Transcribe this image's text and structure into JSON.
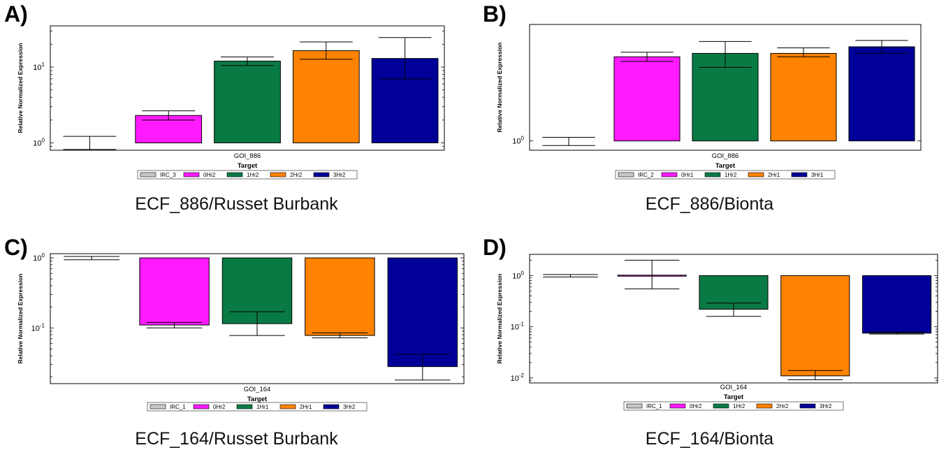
{
  "colors": {
    "IRC": "#c8c8c8",
    "0Hr": "#ff1aff",
    "1Hr": "#0a7a45",
    "2Hr": "#ff8200",
    "3Hr": "#000099"
  },
  "chart_data": [
    {
      "type": "bar",
      "panel_label": "A)",
      "caption": "ECF_886/Russet Burbank",
      "xlabel": "Target",
      "ylabel": "Relative Normalized Expression",
      "category": "GOI_886",
      "yscale": "log",
      "ylim": [
        0.8,
        35
      ],
      "yticks": [
        {
          "v": 1,
          "label": "10",
          "exp": "0"
        },
        {
          "v": 10,
          "label": "10",
          "exp": "1"
        }
      ],
      "series": [
        {
          "name": "IRC_3",
          "value": 1.0,
          "err_low": 0.82,
          "err_high": 1.22,
          "color_key": "IRC"
        },
        {
          "name": "0Hr2",
          "value": 2.3,
          "err_low": 2.0,
          "err_high": 2.65,
          "color_key": "0Hr"
        },
        {
          "name": "1Hr2",
          "value": 12,
          "err_low": 10.5,
          "err_high": 13.6,
          "color_key": "1Hr"
        },
        {
          "name": "2Hr2",
          "value": 16.5,
          "err_low": 12.7,
          "err_high": 21.5,
          "color_key": "2Hr"
        },
        {
          "name": "3Hr2",
          "value": 13,
          "err_low": 7.0,
          "err_high": 24.5,
          "color_key": "3Hr"
        }
      ]
    },
    {
      "type": "bar",
      "panel_label": "B)",
      "caption": "ECF_886/Bionta",
      "xlabel": "Target",
      "ylabel": "Relative Normalized Expression",
      "category": "GOI_886",
      "yscale": "log",
      "ylim": [
        0.95,
        1.9
      ],
      "yticks": [
        {
          "v": 1,
          "label": "10",
          "exp": "0"
        }
      ],
      "series": [
        {
          "name": "IRC_2",
          "value": 1.0,
          "err_low": 0.975,
          "err_high": 1.02,
          "color_key": "IRC"
        },
        {
          "name": "0Hr1",
          "value": 1.59,
          "err_low": 1.55,
          "err_high": 1.63,
          "color_key": "0Hr"
        },
        {
          "name": "1Hr2",
          "value": 1.62,
          "err_low": 1.5,
          "err_high": 1.73,
          "color_key": "1Hr"
        },
        {
          "name": "2Hr1",
          "value": 1.62,
          "err_low": 1.59,
          "err_high": 1.67,
          "color_key": "2Hr"
        },
        {
          "name": "3Hr1",
          "value": 1.68,
          "err_low": 1.62,
          "err_high": 1.74,
          "color_key": "3Hr"
        }
      ]
    },
    {
      "type": "bar",
      "panel_label": "C)",
      "caption": "ECF_164/Russet Burbank",
      "xlabel": "Target",
      "ylabel": "Relative Normalized Expression",
      "category": "GOI_164",
      "yscale": "log",
      "ylim": [
        0.016,
        1.15
      ],
      "yticks": [
        {
          "v": 1,
          "label": "10",
          "exp": "0"
        },
        {
          "v": 0.1,
          "label": "10",
          "exp": "-1"
        }
      ],
      "series": [
        {
          "name": "IRC_1",
          "value": 1.0,
          "err_low": 0.94,
          "err_high": 1.05,
          "color_key": "IRC"
        },
        {
          "name": "0Hr2",
          "value": 0.11,
          "err_low": 0.1,
          "err_high": 0.12,
          "color_key": "0Hr"
        },
        {
          "name": "1Hr1",
          "value": 0.115,
          "err_low": 0.078,
          "err_high": 0.17,
          "color_key": "1Hr"
        },
        {
          "name": "2Hr1",
          "value": 0.078,
          "err_low": 0.072,
          "err_high": 0.085,
          "color_key": "2Hr"
        },
        {
          "name": "3Hr2",
          "value": 0.028,
          "err_low": 0.018,
          "err_high": 0.042,
          "color_key": "3Hr"
        }
      ]
    },
    {
      "type": "bar",
      "panel_label": "D)",
      "caption": "ECF_164/Bionta",
      "xlabel": "Target",
      "ylabel": "Relative Normalized Expression",
      "category": "GOI_164",
      "yscale": "log",
      "ylim": [
        0.008,
        2.6
      ],
      "yticks": [
        {
          "v": 1,
          "label": "10",
          "exp": "0"
        },
        {
          "v": 0.1,
          "label": "10",
          "exp": "-1"
        },
        {
          "v": 0.01,
          "label": "10",
          "exp": "-2"
        }
      ],
      "series": [
        {
          "name": "IRC_1",
          "value": 1.0,
          "err_low": 0.94,
          "err_high": 1.05,
          "color_key": "IRC"
        },
        {
          "name": "0Hr2",
          "value": 1.02,
          "err_low": 0.55,
          "err_high": 2.0,
          "color_key": "0Hr"
        },
        {
          "name": "1Hr2",
          "value": 0.22,
          "err_low": 0.16,
          "err_high": 0.29,
          "color_key": "1Hr"
        },
        {
          "name": "2Hr2",
          "value": 0.011,
          "err_low": 0.0092,
          "err_high": 0.014,
          "color_key": "2Hr"
        },
        {
          "name": "3Hr2",
          "value": 0.075,
          "err_low": 0.072,
          "err_high": 0.078,
          "color_key": "3Hr"
        }
      ]
    }
  ]
}
